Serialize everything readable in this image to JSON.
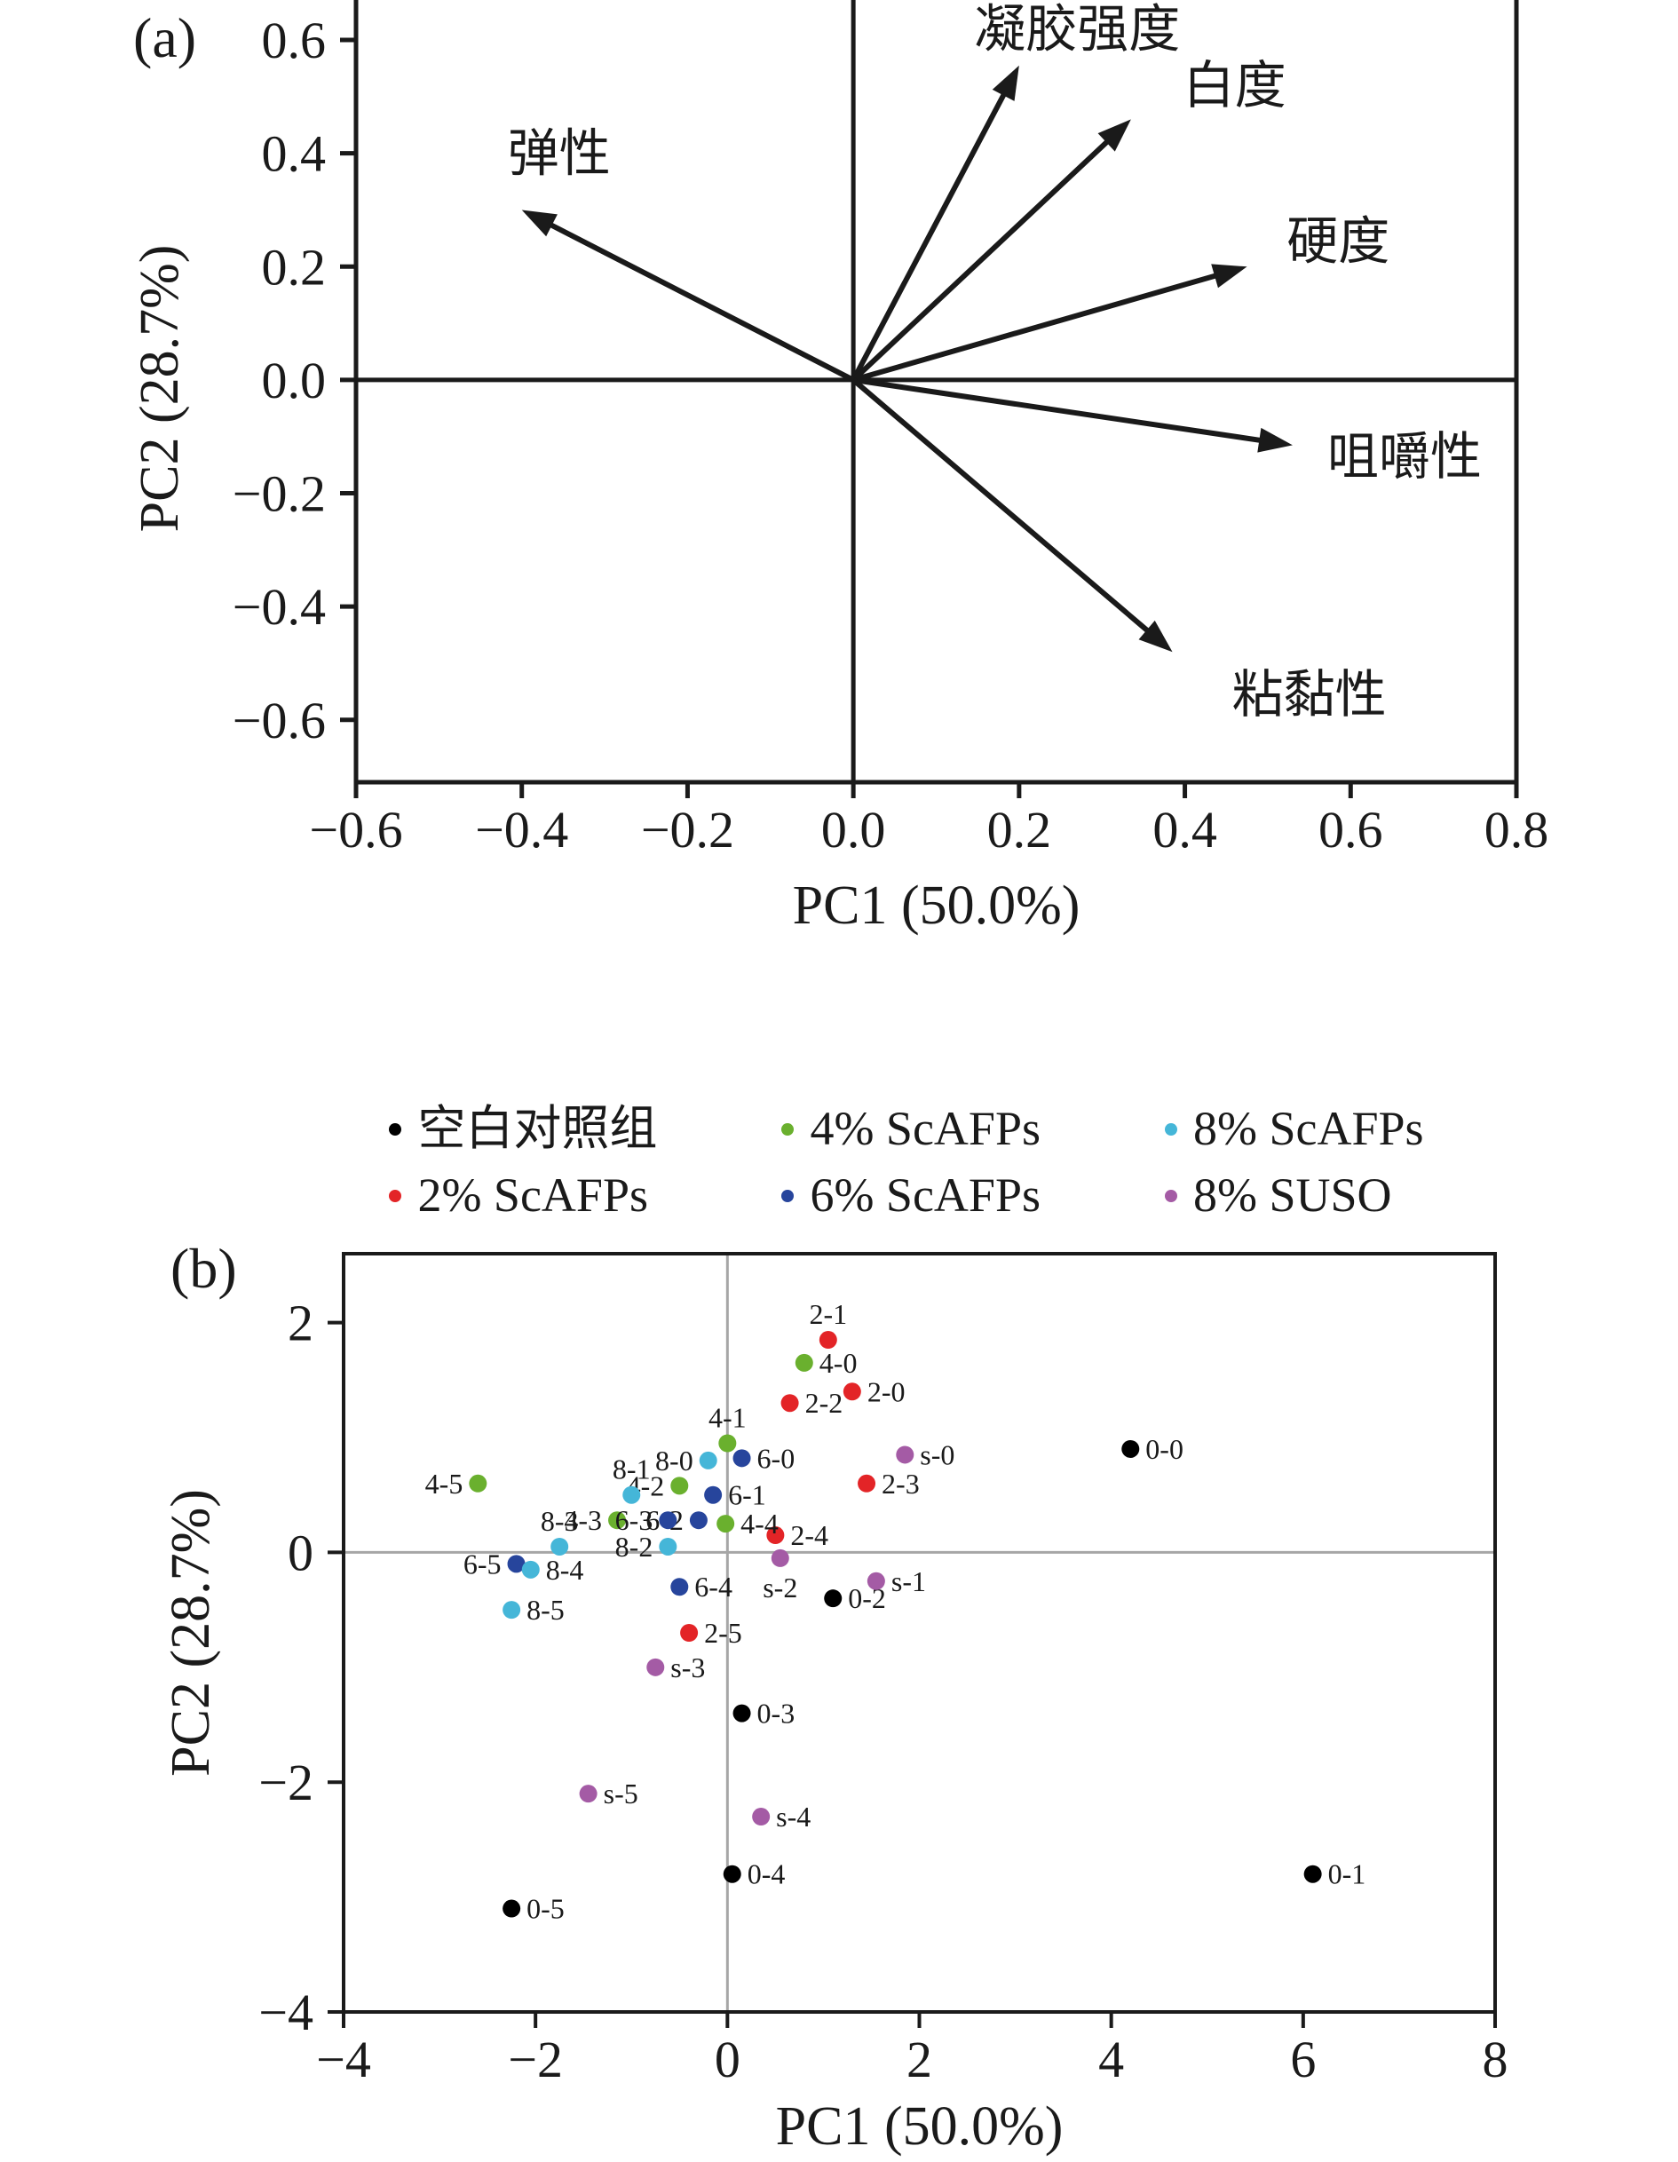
{
  "figure": {
    "background": "#ffffff"
  },
  "chart_data": [
    {
      "type": "scatter",
      "subtype": "pca-loadings-vectors",
      "panel_label": "(a)",
      "xlabel": "PC1 (50.0%)",
      "ylabel": "PC2 (28.7%)",
      "xlim": [
        -0.6,
        0.8
      ],
      "ylim": [
        -0.71,
        0.68
      ],
      "xticks": [
        -0.6,
        -0.4,
        -0.2,
        0.0,
        0.2,
        0.4,
        0.6,
        0.8
      ],
      "yticks": [
        -0.6,
        -0.4,
        -0.2,
        0.0,
        0.2,
        0.4,
        0.6
      ],
      "tick_decimals": 1,
      "grid": false,
      "legend_position": "none",
      "frame_color": "#1a1a1a",
      "zero_line_color": "#1a1a1a",
      "vectors": [
        {
          "label": "凝胶强度",
          "x": 0.2,
          "y": 0.555,
          "label_x": 0.27,
          "label_y": 0.62
        },
        {
          "label": "白度",
          "x": 0.335,
          "y": 0.46,
          "label_x": 0.46,
          "label_y": 0.52
        },
        {
          "label": "硬度",
          "x": 0.475,
          "y": 0.2,
          "label_x": 0.585,
          "label_y": 0.245
        },
        {
          "label": "咀嚼性",
          "x": 0.53,
          "y": -0.115,
          "label_x": 0.665,
          "label_y": -0.135
        },
        {
          "label": "粘黏性",
          "x": 0.385,
          "y": -0.48,
          "label_x": 0.55,
          "label_y": -0.555
        },
        {
          "label": "弹性",
          "x": -0.4,
          "y": 0.3,
          "label_x": -0.355,
          "label_y": 0.4
        }
      ]
    },
    {
      "type": "scatter",
      "subtype": "pca-scores",
      "panel_label": "(b)",
      "xlabel": "PC1 (50.0%)",
      "ylabel": "PC2 (28.7%)",
      "xlim": [
        -4,
        8
      ],
      "ylim": [
        -4,
        2.6
      ],
      "xticks": [
        -4,
        -2,
        0,
        2,
        4,
        6,
        8
      ],
      "yticks": [
        -4,
        -2,
        0,
        2
      ],
      "tick_decimals": 0,
      "grid": false,
      "legend_position": "top",
      "frame_color": "#1a1a1a",
      "zero_line_color": "#a6a6a6",
      "series": [
        {
          "name": "空白对照组",
          "color": "#000000",
          "points": [
            {
              "label": "0-0",
              "x": 4.2,
              "y": 0.9,
              "side": "right"
            },
            {
              "label": "0-1",
              "x": 6.1,
              "y": -2.8,
              "side": "right"
            },
            {
              "label": "0-2",
              "x": 1.1,
              "y": -0.4,
              "side": "right"
            },
            {
              "label": "0-3",
              "x": 0.15,
              "y": -1.4,
              "side": "right"
            },
            {
              "label": "0-4",
              "x": 0.05,
              "y": -2.8,
              "side": "right"
            },
            {
              "label": "0-5",
              "x": -2.25,
              "y": -3.1,
              "side": "right"
            }
          ]
        },
        {
          "name": "2% ScAFPs",
          "color": "#e32427",
          "points": [
            {
              "label": "2-0",
              "x": 1.3,
              "y": 1.4,
              "side": "right"
            },
            {
              "label": "2-1",
              "x": 1.05,
              "y": 1.85,
              "side": "top"
            },
            {
              "label": "2-2",
              "x": 0.65,
              "y": 1.3,
              "side": "right"
            },
            {
              "label": "2-3",
              "x": 1.45,
              "y": 0.6,
              "side": "right"
            },
            {
              "label": "2-4",
              "x": 0.5,
              "y": 0.15,
              "side": "right"
            },
            {
              "label": "2-5",
              "x": -0.4,
              "y": -0.7,
              "side": "right"
            }
          ]
        },
        {
          "name": "4% ScAFPs",
          "color": "#6ab02e",
          "points": [
            {
              "label": "4-0",
              "x": 0.8,
              "y": 1.65,
              "side": "right"
            },
            {
              "label": "4-1",
              "x": 0.0,
              "y": 0.95,
              "side": "top"
            },
            {
              "label": "4-2",
              "x": -0.5,
              "y": 0.58,
              "side": "left"
            },
            {
              "label": "4-3",
              "x": -1.15,
              "y": 0.28,
              "side": "left"
            },
            {
              "label": "4-4",
              "x": -0.02,
              "y": 0.25,
              "side": "right"
            },
            {
              "label": "4-5",
              "x": -2.6,
              "y": 0.6,
              "side": "left"
            }
          ]
        },
        {
          "name": "6% ScAFPs",
          "color": "#27459c",
          "points": [
            {
              "label": "6-0",
              "x": 0.15,
              "y": 0.82,
              "side": "right"
            },
            {
              "label": "6-1",
              "x": -0.15,
              "y": 0.5,
              "side": "right"
            },
            {
              "label": "6-2",
              "x": -0.3,
              "y": 0.28,
              "side": "left"
            },
            {
              "label": "6-3",
              "x": -0.62,
              "y": 0.28,
              "side": "left"
            },
            {
              "label": "6-4",
              "x": -0.5,
              "y": -0.3,
              "side": "right"
            },
            {
              "label": "6-5",
              "x": -2.2,
              "y": -0.1,
              "side": "left"
            }
          ]
        },
        {
          "name": "8% ScAFPs",
          "color": "#45b6d8",
          "points": [
            {
              "label": "8-0",
              "x": -0.2,
              "y": 0.8,
              "side": "left"
            },
            {
              "label": "8-1",
              "x": -1.0,
              "y": 0.5,
              "side": "top"
            },
            {
              "label": "8-2",
              "x": -0.62,
              "y": 0.05,
              "side": "left"
            },
            {
              "label": "8-3",
              "x": -1.75,
              "y": 0.05,
              "side": "top"
            },
            {
              "label": "8-4",
              "x": -2.05,
              "y": -0.15,
              "side": "right"
            },
            {
              "label": "8-5",
              "x": -2.25,
              "y": -0.5,
              "side": "right"
            }
          ]
        },
        {
          "name": "8% SUSO",
          "color": "#a45ba5",
          "points": [
            {
              "label": "s-0",
              "x": 1.85,
              "y": 0.85,
              "side": "right"
            },
            {
              "label": "s-1",
              "x": 1.55,
              "y": -0.25,
              "side": "right"
            },
            {
              "label": "s-2",
              "x": 0.55,
              "y": -0.05,
              "side": "bottom"
            },
            {
              "label": "s-3",
              "x": -0.75,
              "y": -1.0,
              "side": "right"
            },
            {
              "label": "s-4",
              "x": 0.35,
              "y": -2.3,
              "side": "right"
            },
            {
              "label": "s-5",
              "x": -1.45,
              "y": -2.1,
              "side": "right"
            }
          ]
        }
      ]
    }
  ]
}
